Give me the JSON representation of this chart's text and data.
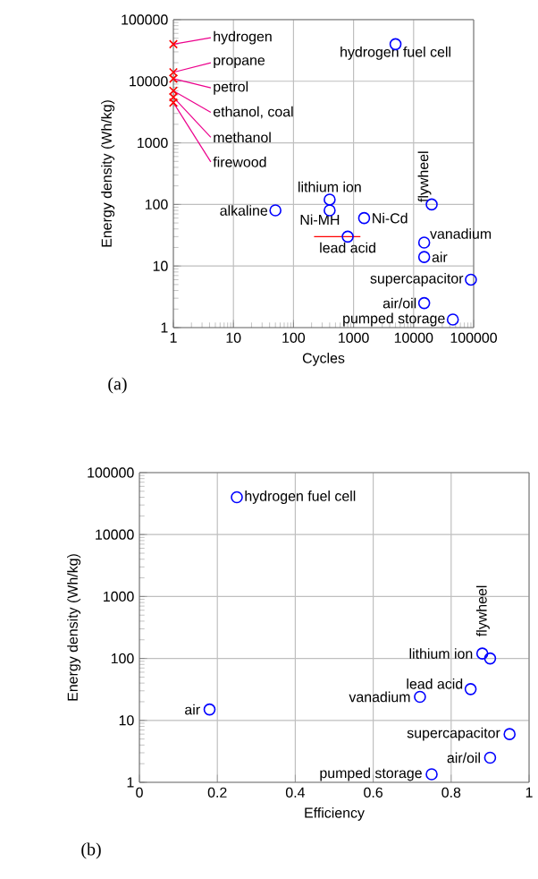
{
  "chart_data": [
    {
      "type": "scatter",
      "xlabel": "Cycles",
      "ylabel": "Energy density (Wh/kg)",
      "log": "xy",
      "grid": true,
      "xlim": [
        1,
        100000
      ],
      "ylim": [
        1,
        100000
      ],
      "xticks": [
        1,
        10,
        100,
        1000,
        10000,
        100000
      ],
      "yticks": [
        1,
        10,
        100,
        1000,
        10000,
        100000
      ],
      "series": [
        {
          "color": "#ff0000",
          "marker": "cross",
          "x": [
            1,
            1,
            1,
            1,
            1,
            1
          ],
          "values": [
            40000,
            14000,
            11000,
            7000,
            5500,
            4500
          ]
        },
        {
          "color": "#0000ff",
          "marker": "circle",
          "x": [
            5000,
            50,
            400,
            400,
            1500,
            800,
            20000,
            15000,
            15000,
            90000,
            15000,
            45000
          ],
          "values": [
            40000,
            80,
            120,
            80,
            60,
            30,
            100,
            24,
            14,
            6,
            2.5,
            1.35
          ],
          "xerrors": [
            null,
            null,
            null,
            null,
            null,
            [
              220,
              1300
            ],
            null,
            null,
            null,
            null,
            null,
            null
          ]
        }
      ],
      "annotations": [
        {
          "text": "hydrogen",
          "x": 1,
          "y": 40000
        },
        {
          "text": "propane",
          "x": 1,
          "y": 14000
        },
        {
          "text": "petrol",
          "x": 1,
          "y": 11000
        },
        {
          "text": "ethanol, coal",
          "x": 1,
          "y": 7000
        },
        {
          "text": "methanol",
          "x": 1,
          "y": 5500
        },
        {
          "text": "firewood",
          "x": 1,
          "y": 4500
        },
        {
          "text": "hydrogen fuel cell",
          "x": 5000,
          "y": 40000
        },
        {
          "text": "alkaline",
          "x": 50,
          "y": 80
        },
        {
          "text": "lithium ion",
          "x": 400,
          "y": 120
        },
        {
          "text": "Ni-MH",
          "x": 400,
          "y": 80
        },
        {
          "text": "Ni-Cd",
          "x": 1500,
          "y": 60
        },
        {
          "text": "lead acid",
          "x": 800,
          "y": 30
        },
        {
          "text": "flywheel",
          "x": 20000,
          "y": 100
        },
        {
          "text": "vanadium",
          "x": 15000,
          "y": 24
        },
        {
          "text": "air",
          "x": 15000,
          "y": 14
        },
        {
          "text": "supercapacitor",
          "x": 90000,
          "y": 6
        },
        {
          "text": "air/oil",
          "x": 15000,
          "y": 2.5
        },
        {
          "text": "pumped storage",
          "x": 45000,
          "y": 1.35
        },
        "(a)"
      ]
    },
    {
      "type": "scatter",
      "xlabel": "Efficiency",
      "ylabel": "Energy density (Wh/kg)",
      "log": "y",
      "grid": true,
      "xlim": [
        0,
        1
      ],
      "ylim": [
        1,
        100000
      ],
      "xticks": [
        0,
        0.2,
        0.4,
        0.6,
        0.8,
        1
      ],
      "yticks": [
        1,
        10,
        100,
        1000,
        10000,
        100000
      ],
      "series": [
        {
          "color": "#0000ff",
          "marker": "circle",
          "x": [
            0.25,
            0.88,
            0.9,
            0.85,
            0.72,
            0.18,
            0.95,
            0.9,
            0.75
          ],
          "values": [
            40000,
            120,
            100,
            32,
            24,
            15,
            6,
            2.5,
            1.35
          ]
        }
      ],
      "annotations": [
        {
          "text": "hydrogen fuel cell",
          "x": 0.25,
          "y": 40000
        },
        {
          "text": "lithium ion",
          "x": 0.88,
          "y": 120
        },
        {
          "text": "flywheel",
          "x": 0.9,
          "y": 100
        },
        {
          "text": "lead acid",
          "x": 0.85,
          "y": 32
        },
        {
          "text": "vanadium",
          "x": 0.72,
          "y": 24
        },
        {
          "text": "air",
          "x": 0.18,
          "y": 15
        },
        {
          "text": "supercapacitor",
          "x": 0.95,
          "y": 6
        },
        {
          "text": "air/oil",
          "x": 0.9,
          "y": 2.5
        },
        {
          "text": "pumped storage",
          "x": 0.75,
          "y": 1.35
        },
        "(b)"
      ]
    }
  ]
}
